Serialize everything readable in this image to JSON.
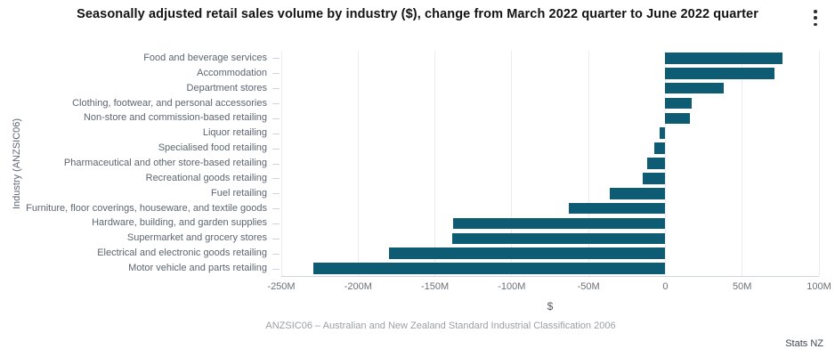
{
  "header": {
    "title": "Seasonally adjusted retail sales volume by industry ($), change from March 2022 quarter to June 2022 quarter"
  },
  "chart_data": {
    "type": "bar",
    "orientation": "horizontal",
    "title": "Seasonally adjusted retail sales volume by industry ($), change from March 2022 quarter to June 2022 quarter",
    "xlabel": "$",
    "ylabel": "Industry (ANZSIC06)",
    "xlim": [
      -250,
      100
    ],
    "x_tick_values": [
      -250,
      -200,
      -150,
      -100,
      -50,
      0,
      50,
      100
    ],
    "x_ticks": [
      "-250M",
      "-200M",
      "-150M",
      "-100M",
      "-50M",
      "0",
      "50M",
      "100M"
    ],
    "value_unit": "M",
    "grid": true,
    "bar_color": "#0d5c73",
    "categories": [
      "Food and beverage services",
      "Accommodation",
      "Department stores",
      "Clothing, footwear, and personal accessories",
      "Non-store and commission-based retailing",
      "Liquor retailing",
      "Specialised food retailing",
      "Pharmaceutical and other store-based retailing",
      "Recreational goods retailing",
      "Fuel retailing",
      "Furniture, floor coverings, houseware, and textile goods",
      "Hardware, building, and garden supplies",
      "Supermarket and grocery stores",
      "Electrical and electronic goods retailing",
      "Motor vehicle and parts retailing"
    ],
    "values": [
      76,
      71,
      38,
      17,
      16,
      -4,
      -7,
      -12,
      -15,
      -36,
      -63,
      -138,
      -139,
      -180,
      -229
    ]
  },
  "footer": {
    "caption": "ANZSIC06 – Australian and New Zealand Standard Industrial Classification 2006",
    "attribution": "Stats NZ"
  }
}
